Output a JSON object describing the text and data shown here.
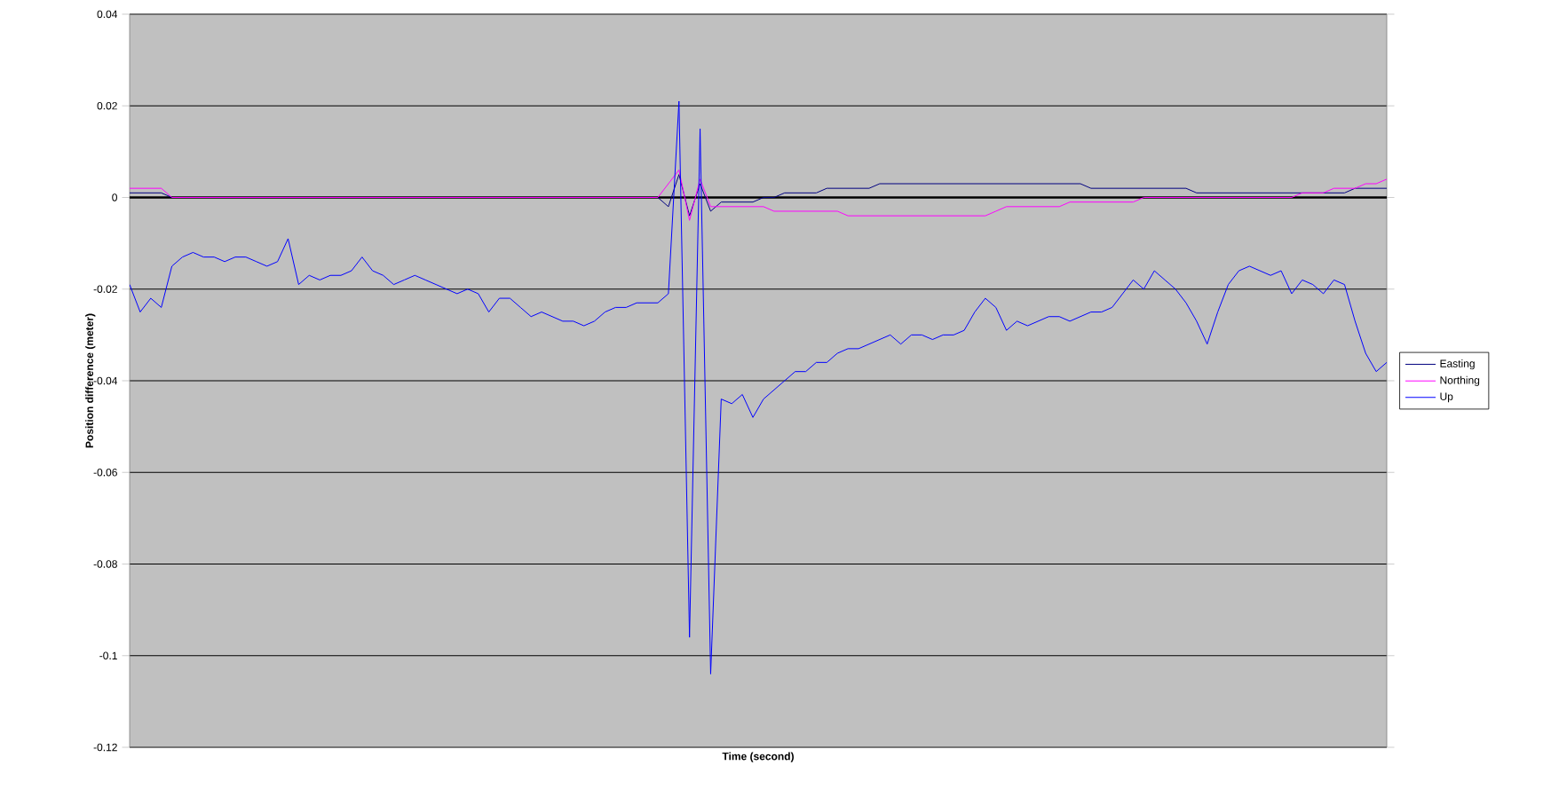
{
  "chart_data": {
    "type": "line",
    "xlabel": "Time (second)",
    "ylabel": "Position difference (meter)",
    "categories": [
      null,
      null,
      null,
      null,
      null,
      null,
      null,
      null,
      null,
      null,
      null,
      null,
      null,
      null,
      null,
      null,
      null,
      null,
      null,
      null,
      null,
      null,
      null,
      null,
      null,
      null,
      null,
      null,
      null,
      null,
      null,
      null,
      null,
      null,
      null,
      null,
      null,
      null,
      null,
      null,
      null,
      null,
      null,
      null,
      null,
      null,
      null,
      null,
      null,
      null,
      null,
      null,
      null,
      null,
      null,
      null,
      null,
      null,
      null,
      null,
      null,
      null,
      null,
      null,
      null,
      null,
      null,
      null,
      null,
      null,
      null,
      null,
      null,
      null,
      null,
      null,
      null,
      null,
      null,
      null,
      null,
      null,
      null,
      null,
      null,
      null,
      null,
      null,
      null,
      null,
      null,
      null,
      null,
      null,
      null,
      null,
      null,
      null,
      null,
      null,
      null,
      null,
      null,
      null,
      null,
      null,
      null,
      null,
      null,
      null,
      null,
      null,
      null,
      null,
      null,
      null,
      null,
      null,
      null,
      null
    ],
    "series": [
      {
        "name": "Easting",
        "color": "#000080",
        "values": [
          0.001,
          0.001,
          0.001,
          0.001,
          0,
          0,
          0,
          0,
          0,
          0,
          0,
          0,
          0,
          0,
          0,
          0,
          0,
          0,
          0,
          0,
          0,
          0,
          0,
          0,
          0,
          0,
          0,
          0,
          0,
          0,
          0,
          0,
          0,
          0,
          0,
          0,
          0,
          0,
          0,
          0,
          0,
          0,
          0,
          0,
          0,
          0,
          0,
          0,
          0,
          0,
          0,
          -0.002,
          0.005,
          -0.004,
          0.003,
          -0.003,
          -0.001,
          -0.001,
          -0.001,
          -0.001,
          0,
          0,
          0.001,
          0.001,
          0.001,
          0.001,
          0.002,
          0.002,
          0.002,
          0.002,
          0.002,
          0.003,
          0.003,
          0.003,
          0.003,
          0.003,
          0.003,
          0.003,
          0.003,
          0.003,
          0.003,
          0.003,
          0.003,
          0.003,
          0.003,
          0.003,
          0.003,
          0.003,
          0.003,
          0.003,
          0.003,
          0.002,
          0.002,
          0.002,
          0.002,
          0.002,
          0.002,
          0.002,
          0.002,
          0.002,
          0.002,
          0.001,
          0.001,
          0.001,
          0.001,
          0.001,
          0.001,
          0.001,
          0.001,
          0.001,
          0.001,
          0.001,
          0.001,
          0.001,
          0.001,
          0.001,
          0.002,
          0.002,
          0.002,
          0.002
        ]
      },
      {
        "name": "Northing",
        "color": "#ff00ff",
        "values": [
          0.002,
          0.002,
          0.002,
          0.002,
          0,
          0,
          0,
          0,
          0,
          0,
          0,
          0,
          0,
          0,
          0,
          0,
          0,
          0,
          0,
          0,
          0,
          0,
          0,
          0,
          0,
          0,
          0,
          0,
          0,
          0,
          0,
          0,
          0,
          0,
          0,
          0,
          0,
          0,
          0,
          0,
          0,
          0,
          0,
          0,
          0,
          0,
          0,
          0,
          0,
          0,
          0,
          0.003,
          0.006,
          -0.005,
          0.004,
          -0.002,
          -0.002,
          -0.002,
          -0.002,
          -0.002,
          -0.002,
          -0.003,
          -0.003,
          -0.003,
          -0.003,
          -0.003,
          -0.003,
          -0.003,
          -0.004,
          -0.004,
          -0.004,
          -0.004,
          -0.004,
          -0.004,
          -0.004,
          -0.004,
          -0.004,
          -0.004,
          -0.004,
          -0.004,
          -0.004,
          -0.004,
          -0.003,
          -0.002,
          -0.002,
          -0.002,
          -0.002,
          -0.002,
          -0.002,
          -0.001,
          -0.001,
          -0.001,
          -0.001,
          -0.001,
          -0.001,
          -0.001,
          0,
          0,
          0,
          0,
          0,
          0,
          0,
          0,
          0,
          0,
          0,
          0,
          0,
          0,
          0,
          0.001,
          0.001,
          0.001,
          0.002,
          0.002,
          0.002,
          0.003,
          0.003,
          0.004
        ]
      },
      {
        "name": "Up",
        "color": "#0000ff",
        "values": [
          -0.019,
          -0.025,
          -0.022,
          -0.024,
          -0.015,
          -0.013,
          -0.012,
          -0.013,
          -0.013,
          -0.014,
          -0.013,
          -0.013,
          -0.014,
          -0.015,
          -0.014,
          -0.009,
          -0.019,
          -0.017,
          -0.018,
          -0.017,
          -0.017,
          -0.016,
          -0.013,
          -0.016,
          -0.017,
          -0.019,
          -0.018,
          -0.017,
          -0.018,
          -0.019,
          -0.02,
          -0.021,
          -0.02,
          -0.021,
          -0.025,
          -0.022,
          -0.022,
          -0.024,
          -0.026,
          -0.025,
          -0.026,
          -0.027,
          -0.027,
          -0.028,
          -0.027,
          -0.025,
          -0.024,
          -0.024,
          -0.023,
          -0.023,
          -0.023,
          -0.021,
          0.021,
          -0.096,
          0.015,
          -0.104,
          -0.044,
          -0.045,
          -0.043,
          -0.048,
          -0.044,
          -0.042,
          -0.04,
          -0.038,
          -0.038,
          -0.036,
          -0.036,
          -0.034,
          -0.033,
          -0.033,
          -0.032,
          -0.031,
          -0.03,
          -0.032,
          -0.03,
          -0.03,
          -0.031,
          -0.03,
          -0.03,
          -0.029,
          -0.025,
          -0.022,
          -0.024,
          -0.029,
          -0.027,
          -0.028,
          -0.027,
          -0.026,
          -0.026,
          -0.027,
          -0.026,
          -0.025,
          -0.025,
          -0.024,
          -0.021,
          -0.018,
          -0.02,
          -0.016,
          -0.018,
          -0.02,
          -0.023,
          -0.027,
          -0.032,
          -0.025,
          -0.019,
          -0.016,
          -0.015,
          -0.016,
          -0.017,
          -0.016,
          -0.021,
          -0.018,
          -0.019,
          -0.021,
          -0.018,
          -0.019,
          -0.027,
          -0.034,
          -0.038,
          -0.036
        ]
      }
    ],
    "ylim": [
      -0.12,
      0.04
    ],
    "yticks": [
      -0.12,
      -0.1,
      -0.08,
      -0.06,
      -0.04,
      -0.02,
      0,
      0.02,
      0.04
    ],
    "ref_lines": [
      {
        "axis": "y",
        "value": 0,
        "color": "#000000"
      }
    ],
    "grid": "y",
    "legend": "right",
    "tick_labels": "y",
    "marker": "none",
    "line_style": "solid"
  }
}
